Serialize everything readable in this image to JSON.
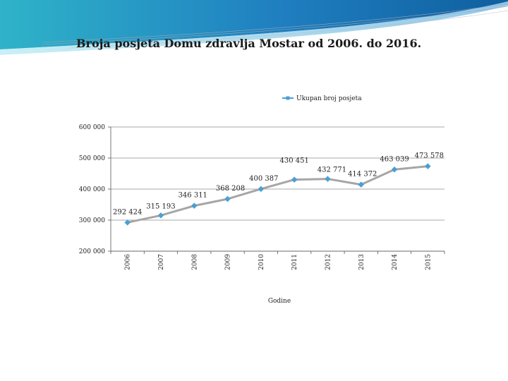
{
  "page": {
    "title": "Broja posjeta Domu zdravlja Mostar od  2006. do 2016."
  },
  "colors": {
    "series_line": "#a6a6a6",
    "series_marker": "#4a9fd4",
    "legend_line": "#4a9fd4",
    "gridline": "#8c8c8c",
    "header_blue": "#1f7fc0",
    "header_teal": "#2fb3c9"
  },
  "chart_data": {
    "type": "line",
    "title": "",
    "xlabel": "Godine",
    "ylabel": "",
    "legend": {
      "position": "top",
      "entries": [
        "Ukupan broj posjeta"
      ]
    },
    "grid": true,
    "ylim": [
      200000,
      600000
    ],
    "y_ticks": [
      {
        "value": 200000,
        "label": "200 000"
      },
      {
        "value": 300000,
        "label": "300 000"
      },
      {
        "value": 400000,
        "label": "400 000"
      },
      {
        "value": 500000,
        "label": "500 000"
      },
      {
        "value": 600000,
        "label": "600 000"
      }
    ],
    "categories": [
      "2006",
      "2007",
      "2008",
      "2009",
      "2010",
      "2011",
      "2012",
      "2013",
      "2014",
      "2015"
    ],
    "series": [
      {
        "name": "Ukupan broj posjeta",
        "values": [
          292424,
          315193,
          346311,
          368208,
          400387,
          430451,
          432771,
          414372,
          463039,
          473578
        ],
        "data_labels": [
          "292 424",
          "315 193",
          "346 311",
          "368 208",
          "400 387",
          "430 451",
          "432 771",
          "414 372",
          "463 039",
          "473 578"
        ]
      }
    ]
  }
}
